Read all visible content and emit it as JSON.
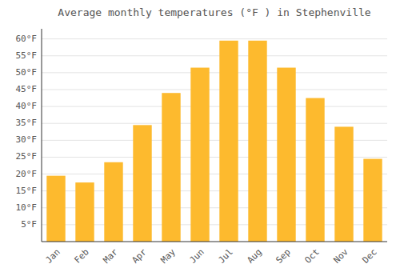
{
  "chart_data": {
    "type": "bar",
    "title": "Average monthly temperatures (°F ) in Stephenville",
    "categories": [
      "Jan",
      "Feb",
      "Mar",
      "Apr",
      "May",
      "Jun",
      "Jul",
      "Aug",
      "Sep",
      "Oct",
      "Nov",
      "Dec"
    ],
    "values": [
      19.5,
      17.5,
      23.5,
      34.5,
      44.0,
      51.5,
      59.5,
      59.5,
      51.5,
      42.5,
      34.0,
      24.5
    ],
    "color": "#FDBA2E",
    "ylim": [
      0,
      63
    ],
    "yticks": [
      {
        "value": 5,
        "label": "5°F"
      },
      {
        "value": 10,
        "label": "10°F"
      },
      {
        "value": 15,
        "label": "15°F"
      },
      {
        "value": 20,
        "label": "20°F"
      },
      {
        "value": 25,
        "label": "25°F"
      },
      {
        "value": 30,
        "label": "30°F"
      },
      {
        "value": 35,
        "label": "35°F"
      },
      {
        "value": 40,
        "label": "40°F"
      },
      {
        "value": 45,
        "label": "45°F"
      },
      {
        "value": 50,
        "label": "50°F"
      },
      {
        "value": 55,
        "label": "55°F"
      },
      {
        "value": 60,
        "label": "60°F"
      }
    ],
    "grid": true
  }
}
